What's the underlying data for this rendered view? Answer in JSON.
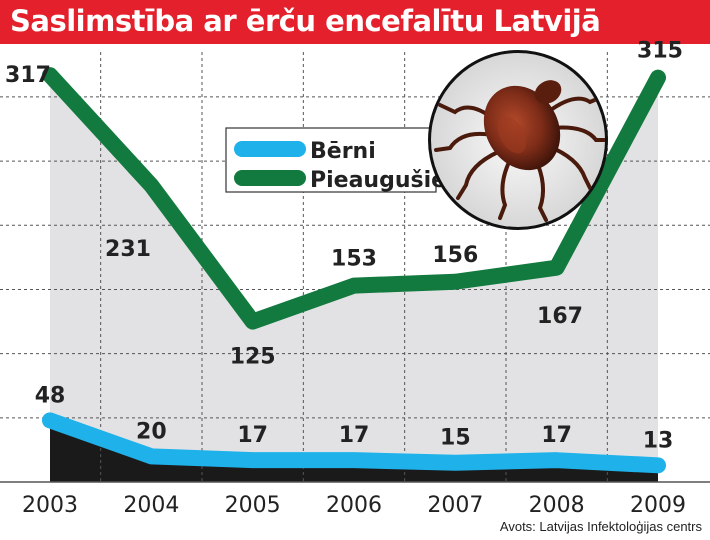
{
  "colors": {
    "title_bg": "#e3202b",
    "title_text": "#ffffff",
    "adults_line": "#127a3e",
    "children_line": "#1fb1ea",
    "plot_fill": "#e2e2e4",
    "children_fill": "#1a1a1a",
    "grid": "#555555",
    "label_text": "#222222"
  },
  "header": {
    "title": "Saslimstība ar ērču encefalītu Latvijā"
  },
  "footer": {
    "source": "Avots: Latvijas Infektoloģijas centrs"
  },
  "decoration": {
    "image": "tick-photo"
  },
  "chart_data": {
    "type": "line",
    "title": "Saslimstība ar ērču encefalītu Latvijā",
    "x": [
      "2003",
      "2004",
      "2005",
      "2006",
      "2007",
      "2008",
      "2009"
    ],
    "series": [
      {
        "name": "Bērni",
        "values": [
          48,
          20,
          17,
          17,
          15,
          17,
          13
        ],
        "color": "#1fb1ea"
      },
      {
        "name": "Pieaugušie",
        "values": [
          317,
          231,
          125,
          153,
          156,
          167,
          315
        ],
        "color": "#127a3e"
      }
    ],
    "ylim": [
      0,
      335
    ],
    "grid": true,
    "legend": "top-center",
    "data_labels": true
  }
}
